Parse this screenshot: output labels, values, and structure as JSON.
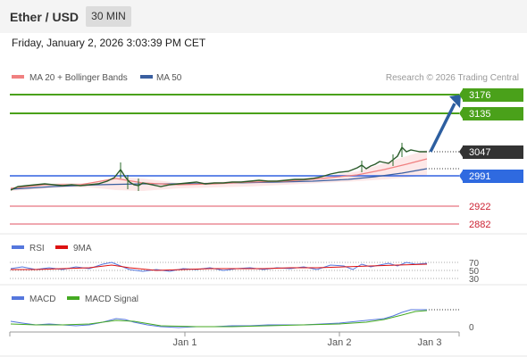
{
  "header": {
    "pair": "Ether / USD",
    "timeframe": "30 MIN"
  },
  "datetime": "Friday, January 2, 2026 3:03:39 PM CET",
  "legend": {
    "ma20": "MA 20 + Bollinger Bands",
    "ma50": "MA 50",
    "credit": "Research © 2026 Trading Central"
  },
  "colors": {
    "resistance": "#4aa11a",
    "support_line": "#3060e0",
    "support_red": "#e05060",
    "ma20": "#f08080",
    "ma50": "#3a5fa0",
    "current": "#333333"
  },
  "levels": {
    "r2": "3176",
    "r1": "3135",
    "current": "3047",
    "pivot": "2991",
    "s1": "2922",
    "s2": "2882"
  },
  "rsi": {
    "label": "RSI",
    "ma_label": "9MA",
    "ticks": [
      "70",
      "50",
      "30"
    ]
  },
  "macd": {
    "label": "MACD",
    "signal_label": "MACD Signal",
    "zero": "0"
  },
  "xaxis": [
    "Jan 1",
    "Jan 2",
    "Jan 3"
  ]
}
